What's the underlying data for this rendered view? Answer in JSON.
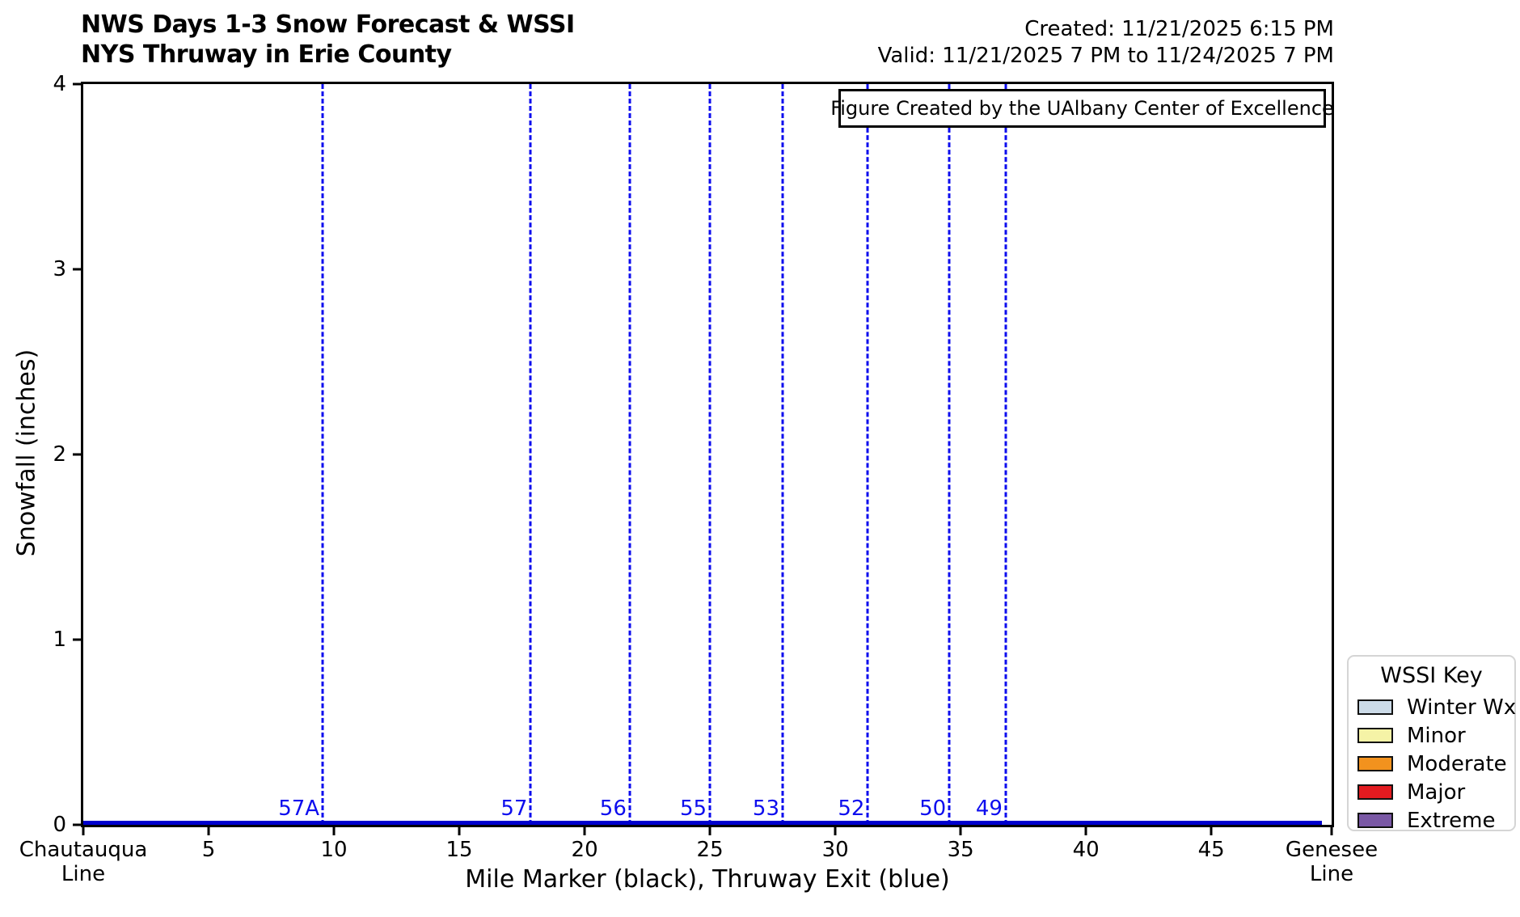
{
  "header": {
    "title_line1": "NWS Days 1-3 Snow Forecast & WSSI",
    "title_line2": "NYS Thruway in Erie County",
    "created": "Created: 11/21/2025 6:15 PM",
    "valid": "Valid: 11/21/2025 7 PM to 11/24/2025 7 PM"
  },
  "annotation": "Figure Created by the UAlbany Center of Excellence",
  "chart_data": {
    "type": "line",
    "title": "NWS Days 1-3 Snow Forecast & WSSI — NYS Thruway in Erie County",
    "xlabel": "Mile Marker (black), Thruway Exit (blue)",
    "ylabel": "Snowfall (inches)",
    "xlim": [
      0,
      49.8
    ],
    "ylim": [
      0,
      4
    ],
    "grid": false,
    "x_ticks": [
      {
        "mile": 0,
        "label": "Chautauqua\nLine"
      },
      {
        "mile": 5,
        "label": "5"
      },
      {
        "mile": 10,
        "label": "10"
      },
      {
        "mile": 15,
        "label": "15"
      },
      {
        "mile": 20,
        "label": "20"
      },
      {
        "mile": 25,
        "label": "25"
      },
      {
        "mile": 30,
        "label": "30"
      },
      {
        "mile": 35,
        "label": "35"
      },
      {
        "mile": 40,
        "label": "40"
      },
      {
        "mile": 45,
        "label": "45"
      },
      {
        "mile": 49.8,
        "label": "Genesee\nLine"
      }
    ],
    "y_ticks": [
      0,
      1,
      2,
      3,
      4
    ],
    "series": [
      {
        "name": "NWS Days 1-3 snowfall forecast",
        "color": "#0000cd",
        "points": [
          {
            "mile": 0,
            "inches": 0
          },
          {
            "mile": 49.4,
            "inches": 0
          }
        ],
        "note": "flat line at 0 inches along the entire corridor"
      }
    ],
    "exits": [
      {
        "label": "57A",
        "mile": 9.55
      },
      {
        "label": "57",
        "mile": 17.85
      },
      {
        "label": "56",
        "mile": 21.8
      },
      {
        "label": "55",
        "mile": 25.0
      },
      {
        "label": "53",
        "mile": 27.9
      },
      {
        "label": "52",
        "mile": 31.3
      },
      {
        "label": "50",
        "mile": 34.55
      },
      {
        "label": "49",
        "mile": 36.8
      }
    ],
    "exit_line_color": "#0d0dee",
    "wssi_shading": "none visible (no WSSI category segments shown)",
    "legend_position": "lower right, outside axes"
  },
  "legend": {
    "title": "WSSI Key",
    "entries": [
      {
        "label": "Winter Wx",
        "color": "#ccdbe8"
      },
      {
        "label": "Minor",
        "color": "#f5f3a6"
      },
      {
        "label": "Moderate",
        "color": "#f2921e"
      },
      {
        "label": "Major",
        "color": "#e31b20"
      },
      {
        "label": "Extreme",
        "color": "#7a58a5"
      }
    ]
  }
}
